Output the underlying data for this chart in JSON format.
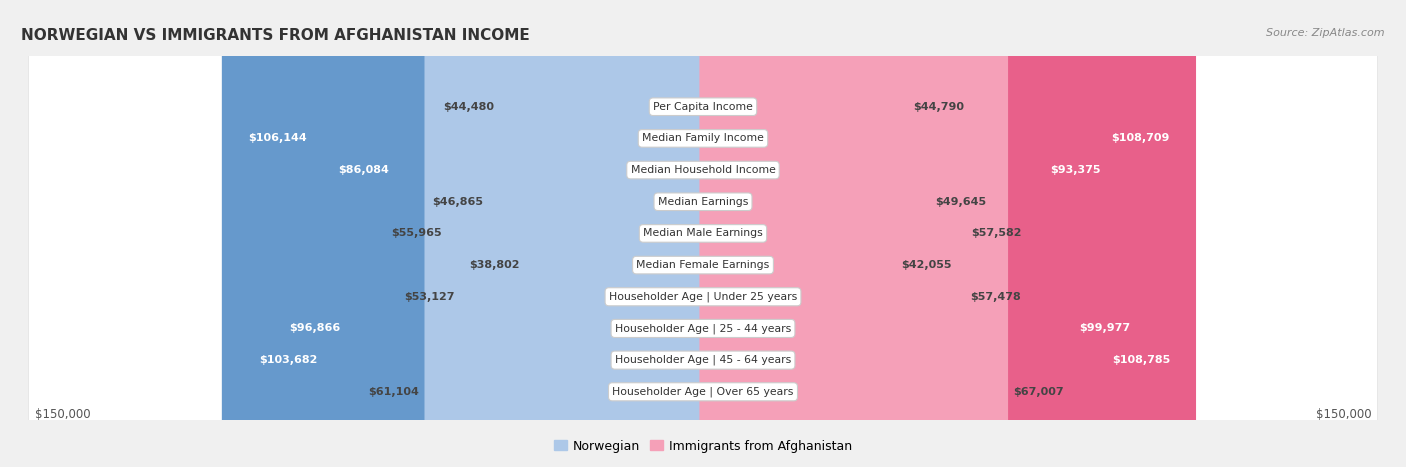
{
  "title": "NORWEGIAN VS IMMIGRANTS FROM AFGHANISTAN INCOME",
  "source": "Source: ZipAtlas.com",
  "categories": [
    "Per Capita Income",
    "Median Family Income",
    "Median Household Income",
    "Median Earnings",
    "Median Male Earnings",
    "Median Female Earnings",
    "Householder Age | Under 25 years",
    "Householder Age | 25 - 44 years",
    "Householder Age | 45 - 64 years",
    "Householder Age | Over 65 years"
  ],
  "norwegian_values": [
    44480,
    106144,
    86084,
    46865,
    55965,
    38802,
    53127,
    96866,
    103682,
    61104
  ],
  "afghan_values": [
    44790,
    108709,
    93375,
    49645,
    57582,
    42055,
    57478,
    99977,
    108785,
    67007
  ],
  "norwegian_labels": [
    "$44,480",
    "$106,144",
    "$86,084",
    "$46,865",
    "$55,965",
    "$38,802",
    "$53,127",
    "$96,866",
    "$103,682",
    "$61,104"
  ],
  "afghan_labels": [
    "$44,790",
    "$108,709",
    "$93,375",
    "$49,645",
    "$57,582",
    "$42,055",
    "$57,478",
    "$99,977",
    "$108,785",
    "$67,007"
  ],
  "max_val": 150000,
  "norwegian_color_light": "#adc8e8",
  "norwegian_color_dark": "#6699cc",
  "afghan_color_light": "#f5a0b8",
  "afghan_color_dark": "#e8608a",
  "norwegian_label_threshold": 75000,
  "afghan_label_threshold": 75000,
  "bg_color": "#f0f0f0",
  "row_bg_color": "#ffffff",
  "row_border_color": "#d0d0d0",
  "legend_norwegian": "Norwegian",
  "legend_afghan": "Immigrants from Afghanistan",
  "x_tick_left": "$150,000",
  "x_tick_right": "$150,000"
}
